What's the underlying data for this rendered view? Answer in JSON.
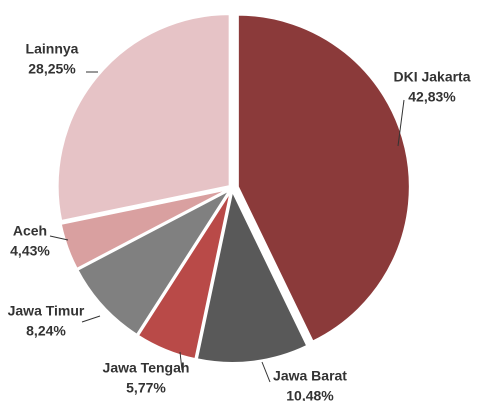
{
  "chart_data": {
    "type": "pie",
    "categories": [
      "DKI Jakarta",
      "Jawa Barat",
      "Jawa Tengah",
      "Jawa Timur",
      "Aceh",
      "Lainnya"
    ],
    "values": [
      42.83,
      10.48,
      5.77,
      8.24,
      4.43,
      28.25
    ],
    "value_labels": [
      "42,83%",
      "10,48%",
      "5,77%",
      "8,24%",
      "4,43%",
      "28,25%"
    ],
    "colors": [
      "#8b3a3a",
      "#595959",
      "#b94a48",
      "#808080",
      "#d9a0a0",
      "#e6c3c6"
    ]
  }
}
